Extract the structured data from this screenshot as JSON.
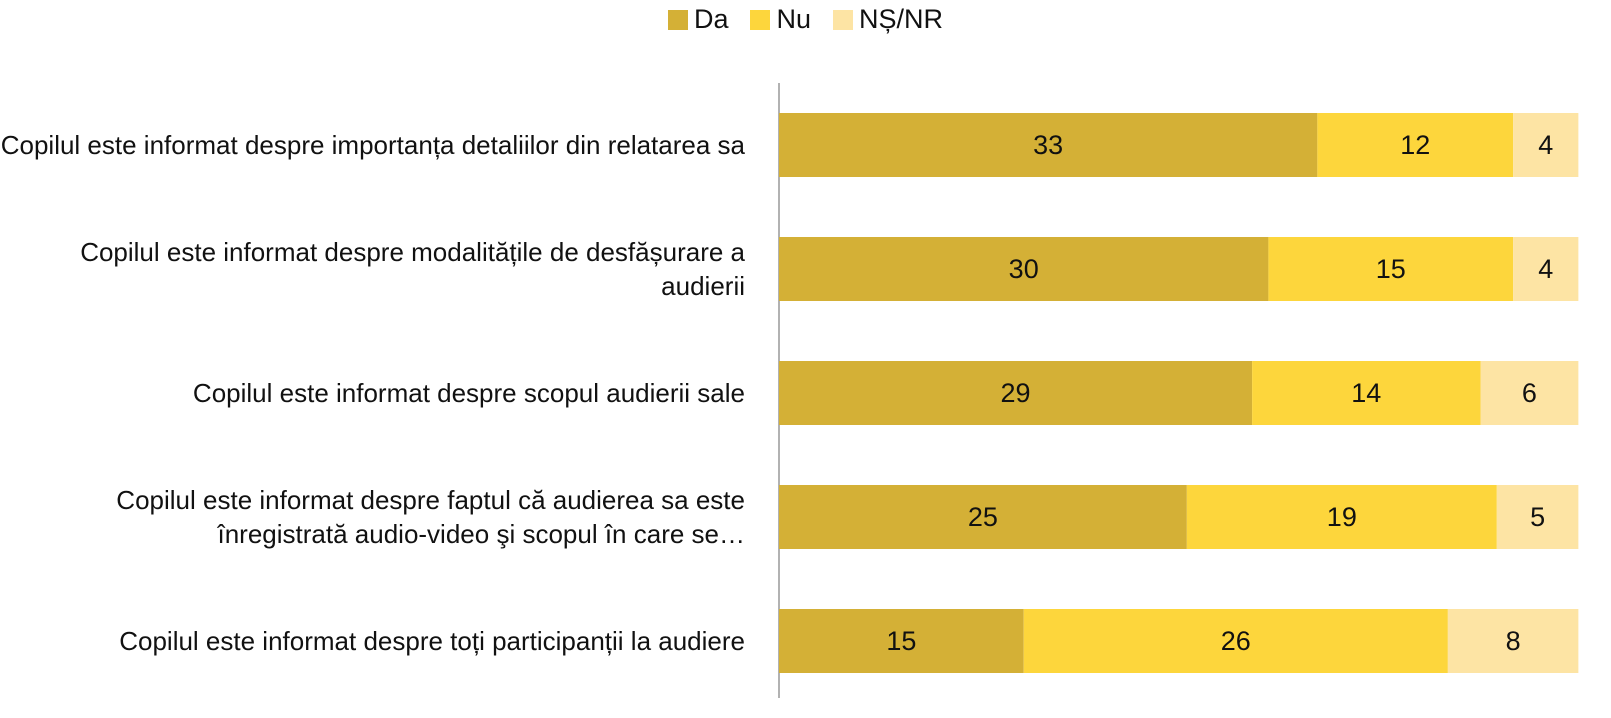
{
  "chart_data": {
    "type": "stacked-barh",
    "categories": [
      "Copilul este informat despre importanța detaliilor din relatarea sa",
      "Copilul este informat despre modalitățile de desfășurare a audierii",
      "Copilul este informat despre scopul audierii sale",
      "Copilul este informat despre faptul că audierea sa este înregistrată audio-video şi scopul în care se…",
      "Copilul este informat despre toți participanții la audiere"
    ],
    "series": [
      {
        "name": "Da",
        "color": "#d4b036",
        "values": [
          33,
          30,
          29,
          25,
          15
        ]
      },
      {
        "name": "Nu",
        "color": "#fdd63c",
        "values": [
          12,
          15,
          14,
          19,
          26
        ]
      },
      {
        "name": "NȘ/NR",
        "color": "#fde4a4",
        "values": [
          4,
          4,
          6,
          5,
          8
        ]
      }
    ],
    "xlim": [
      0,
      51
    ],
    "legend": "top"
  }
}
